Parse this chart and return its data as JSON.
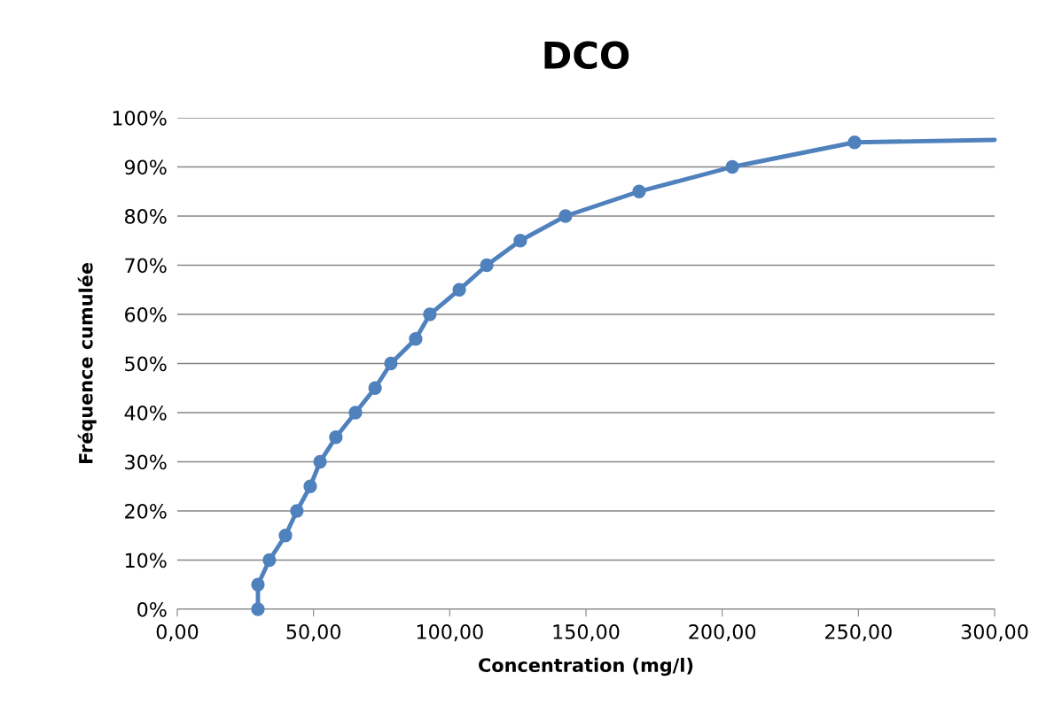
{
  "chart_data": {
    "type": "line",
    "title": "DCO",
    "xlabel": "Concentration (mg/l)",
    "ylabel": "Fréquence cumulée",
    "series": [
      {
        "color": "#4f81bd",
        "marker": "circle",
        "x": [
          29.6,
          29.6,
          33.8,
          39.7,
          43.9,
          48.8,
          52.4,
          58.2,
          65.4,
          72.6,
          78.4,
          87.5,
          92.7,
          103.5,
          113.6,
          125.9,
          142.5,
          169.5,
          203.7,
          248.6
        ],
        "values": [
          0,
          5,
          10,
          15,
          20,
          25,
          30,
          35,
          40,
          45,
          50,
          55,
          60,
          65,
          70,
          75,
          80,
          85,
          90,
          95
        ]
      },
      {
        "color": "#4f81bd",
        "marker": "none",
        "x": [
          248.6,
          300
        ],
        "values": [
          95,
          95.5
        ]
      }
    ],
    "xlim": [
      0,
      300
    ],
    "xticks": [
      {
        "value": 0,
        "label": "0,00"
      },
      {
        "value": 50,
        "label": "50,00"
      },
      {
        "value": 100,
        "label": "100,00"
      },
      {
        "value": 150,
        "label": "150,00"
      },
      {
        "value": 200,
        "label": "200,00"
      },
      {
        "value": 250,
        "label": "250,00"
      },
      {
        "value": 300,
        "label": "300,00"
      }
    ],
    "ylim": [
      0,
      100
    ],
    "yticks": [
      {
        "value": 0,
        "label": "0%"
      },
      {
        "value": 10,
        "label": "10%"
      },
      {
        "value": 20,
        "label": "20%"
      },
      {
        "value": 30,
        "label": "30%"
      },
      {
        "value": 40,
        "label": "40%"
      },
      {
        "value": 50,
        "label": "50%"
      },
      {
        "value": 60,
        "label": "60%"
      },
      {
        "value": 70,
        "label": "70%"
      },
      {
        "value": 80,
        "label": "80%"
      },
      {
        "value": 90,
        "label": "90%"
      },
      {
        "value": 100,
        "label": "100%"
      }
    ],
    "grid": "y",
    "line_style": "solid"
  }
}
